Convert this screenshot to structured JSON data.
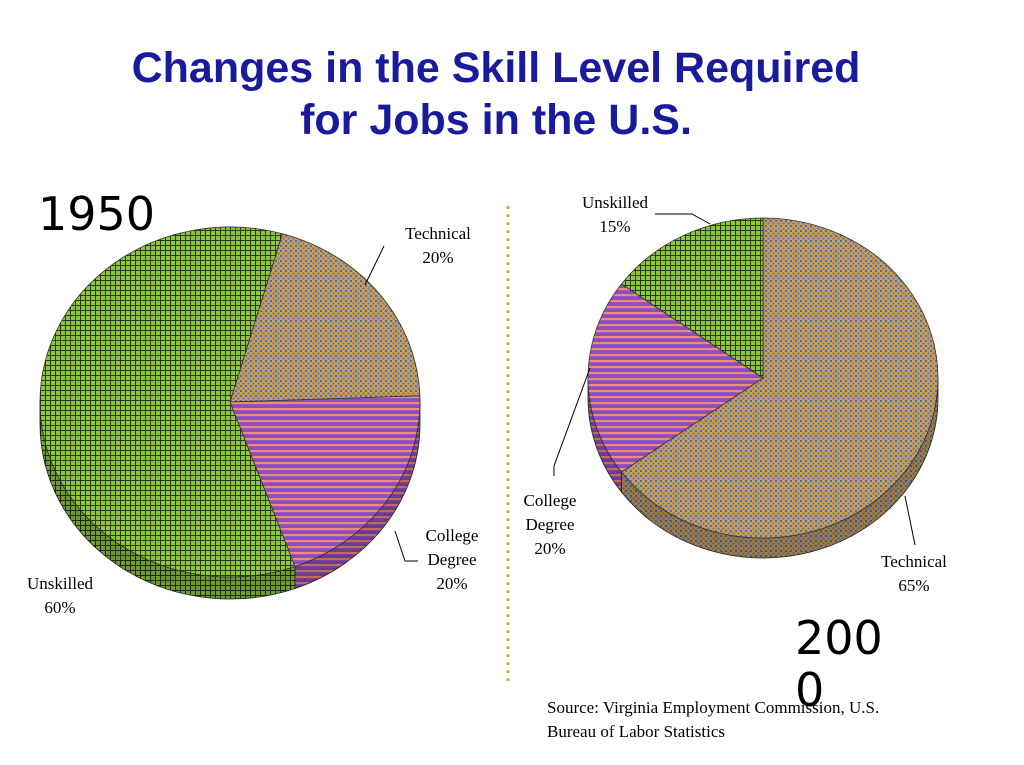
{
  "title": {
    "line1": "Changes in the Skill Level Required",
    "line2": "for Jobs in the U.S."
  },
  "years": {
    "left": "1950",
    "right": "2000"
  },
  "source": {
    "line1": "Source: Virginia Employment Commission, U.S.",
    "line2": "Bureau of Labor Statistics"
  },
  "colors": {
    "title": "#1a1a9c",
    "divider": "#f5a01e",
    "unskilled": "#8cc63f",
    "technical": "#d39a4d",
    "college": "#8a4ec2",
    "college_stripe": "#f08a76",
    "technical_dots": "#3a72c4"
  },
  "chart_data": [
    {
      "type": "pie",
      "title": "1950",
      "slices": [
        {
          "label": "Technical",
          "value": 20,
          "value_label": "20%"
        },
        {
          "label": "College Degree",
          "label_lines": [
            "College",
            "Degree"
          ],
          "value": 20,
          "value_label": "20%"
        },
        {
          "label": "Unskilled",
          "value": 60,
          "value_label": "60%"
        }
      ]
    },
    {
      "type": "pie",
      "title": "2000",
      "slices": [
        {
          "label": "Technical",
          "value": 65,
          "value_label": "65%"
        },
        {
          "label": "College Degree",
          "label_lines": [
            "College",
            "Degree"
          ],
          "value": 20,
          "value_label": "20%"
        },
        {
          "label": "Unskilled",
          "value": 15,
          "value_label": "15%"
        }
      ]
    }
  ]
}
